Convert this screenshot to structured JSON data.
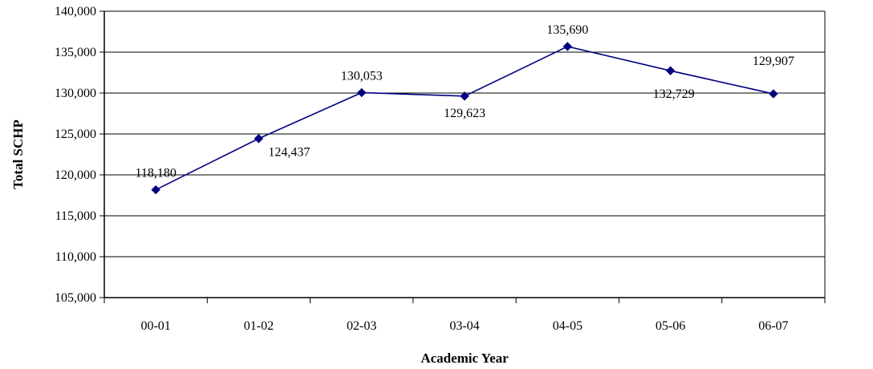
{
  "chart_data": {
    "type": "line",
    "title": "",
    "xlabel": "Academic Year",
    "ylabel": "Total SCHP",
    "categories": [
      "00-01",
      "01-02",
      "02-03",
      "03-04",
      "04-05",
      "05-06",
      "06-07"
    ],
    "series": [
      {
        "values": [
          118180,
          124437,
          130053,
          129623,
          135690,
          132729,
          129907
        ],
        "labels": [
          "118,180",
          "124,437",
          "130,053",
          "129,623",
          "135,690",
          "132,729",
          "129,907"
        ],
        "color": "#000080",
        "marker": "diamond"
      }
    ],
    "ylim": [
      105000,
      140000
    ],
    "yticks": [
      105000,
      110000,
      115000,
      120000,
      125000,
      130000,
      135000,
      140000
    ],
    "ytick_labels": [
      "105,000",
      "110,000",
      "115,000",
      "120,000",
      "125,000",
      "130,000",
      "135,000",
      "140,000"
    ],
    "grid": "horizontal",
    "legend": "none"
  }
}
